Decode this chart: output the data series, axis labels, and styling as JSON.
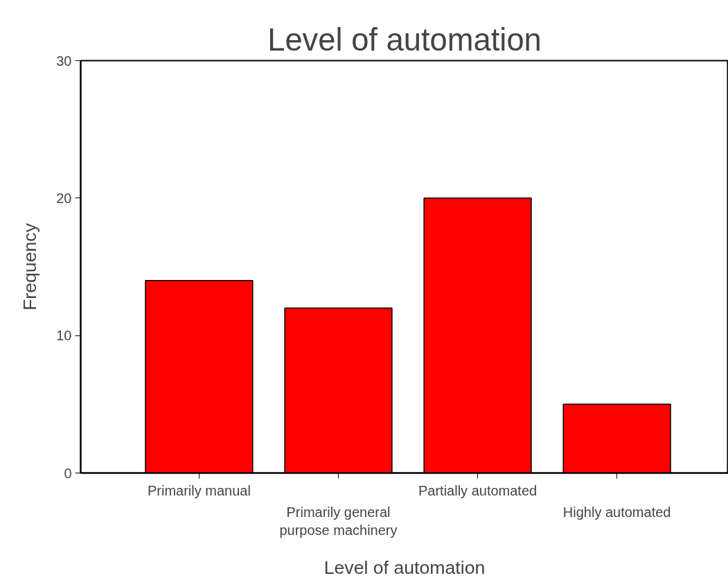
{
  "chart_data": {
    "type": "bar",
    "title": "Level of automation",
    "xlabel": "Level of automation",
    "ylabel": "Frequency",
    "categories": [
      "Primarily manual",
      "Primarily general purpose machinery",
      "Partially automated",
      "Highly automated"
    ],
    "values": [
      14,
      12,
      20,
      5
    ],
    "color": "#ff0000",
    "ylim": [
      0,
      30
    ],
    "yticks": [
      0,
      10,
      20,
      30
    ],
    "grid": false
  }
}
